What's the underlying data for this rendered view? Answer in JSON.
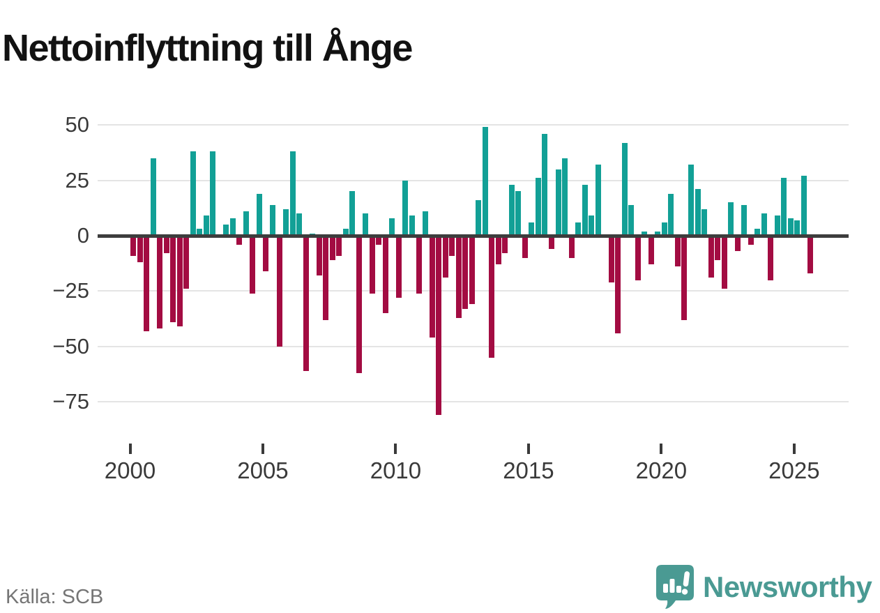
{
  "title": "Nettoinflyttning till Ånge",
  "footer": {
    "source": "Källa: SCB"
  },
  "branding": {
    "name": "Newsworthy"
  },
  "colors": {
    "positive": "#12a096",
    "negative": "#a30c42",
    "grid": "#e4e4e4",
    "zero_line": "#3d3d3d",
    "axis_text": "#3a3a3a",
    "title_text": "#121212",
    "source_text": "#757575",
    "brand": "#4a9a93"
  },
  "chart_data": {
    "type": "bar",
    "title": "Nettoinflyttning till Ånge",
    "xlabel": "",
    "ylabel": "",
    "grid": "horizontal",
    "legend": "none",
    "ylim": [
      -88,
      53
    ],
    "yticks": [
      50,
      25,
      0,
      -25,
      -50,
      -75
    ],
    "ytick_labels": [
      "50",
      "25",
      "0",
      "−25",
      "−50",
      "−75"
    ],
    "xticks": [
      2000,
      2005,
      2010,
      2015,
      2020,
      2025
    ],
    "xtick_labels": [
      "2000",
      "2005",
      "2010",
      "2015",
      "2020",
      "2025"
    ],
    "positive_color": "#12a096",
    "negative_color": "#a30c42",
    "x": [
      "2000 Q1",
      "2000 Q2",
      "2000 Q3",
      "2000 Q4",
      "2001 Q1",
      "2001 Q2",
      "2001 Q3",
      "2001 Q4",
      "2002 Q1",
      "2002 Q2",
      "2002 Q3",
      "2002 Q4",
      "2003 Q1",
      "2003 Q2",
      "2003 Q3",
      "2003 Q4",
      "2004 Q1",
      "2004 Q2",
      "2004 Q3",
      "2004 Q4",
      "2005 Q1",
      "2005 Q2",
      "2005 Q3",
      "2005 Q4",
      "2006 Q1",
      "2006 Q2",
      "2006 Q3",
      "2006 Q4",
      "2007 Q1",
      "2007 Q2",
      "2007 Q3",
      "2007 Q4",
      "2008 Q1",
      "2008 Q2",
      "2008 Q3",
      "2008 Q4",
      "2009 Q1",
      "2009 Q2",
      "2009 Q3",
      "2009 Q4",
      "2010 Q1",
      "2010 Q2",
      "2010 Q3",
      "2010 Q4",
      "2011 Q1",
      "2011 Q2",
      "2011 Q3",
      "2011 Q4",
      "2012 Q1",
      "2012 Q2",
      "2012 Q3",
      "2012 Q4",
      "2013 Q1",
      "2013 Q2",
      "2013 Q3",
      "2013 Q4",
      "2014 Q1",
      "2014 Q2",
      "2014 Q3",
      "2014 Q4",
      "2015 Q1",
      "2015 Q2",
      "2015 Q3",
      "2015 Q4",
      "2016 Q1",
      "2016 Q2",
      "2016 Q3",
      "2016 Q4",
      "2017 Q1",
      "2017 Q2",
      "2017 Q3",
      "2017 Q4",
      "2018 Q1",
      "2018 Q2",
      "2018 Q3",
      "2018 Q4",
      "2019 Q1",
      "2019 Q2",
      "2019 Q3",
      "2019 Q4",
      "2020 Q1",
      "2020 Q2",
      "2020 Q3",
      "2020 Q4",
      "2021 Q1",
      "2021 Q2",
      "2021 Q3",
      "2021 Q4",
      "2022 Q1",
      "2022 Q2",
      "2022 Q3",
      "2022 Q4",
      "2023 Q1",
      "2023 Q2",
      "2023 Q3",
      "2023 Q4",
      "2024 Q1",
      "2024 Q2",
      "2024 Q3",
      "2024 Q4",
      "2025 Q1",
      "2025 Q2",
      "2025 Q3"
    ],
    "values": [
      -9,
      -12,
      -43,
      35,
      -42,
      -8,
      -39,
      -41,
      -24,
      38,
      3,
      9,
      38,
      0,
      5,
      8,
      -4,
      11,
      -26,
      19,
      -16,
      14,
      -50,
      12,
      38,
      10,
      -61,
      1,
      -18,
      -38,
      -11,
      -9,
      3,
      20,
      -62,
      10,
      -26,
      -4,
      -35,
      8,
      -28,
      25,
      9,
      -26,
      11,
      -46,
      -81,
      -19,
      -9,
      -37,
      -33,
      -31,
      16,
      49,
      -55,
      -13,
      -8,
      23,
      20,
      -10,
      6,
      26,
      46,
      -6,
      30,
      35,
      -10,
      6,
      23,
      9,
      32,
      0,
      -21,
      -44,
      42,
      14,
      -20,
      2,
      -13,
      2,
      6,
      19,
      -14,
      -38,
      32,
      21,
      12,
      -19,
      -11,
      -24,
      15,
      -7,
      14,
      -4,
      3,
      10,
      -20,
      9,
      26,
      8,
      7,
      27,
      -17
    ]
  }
}
